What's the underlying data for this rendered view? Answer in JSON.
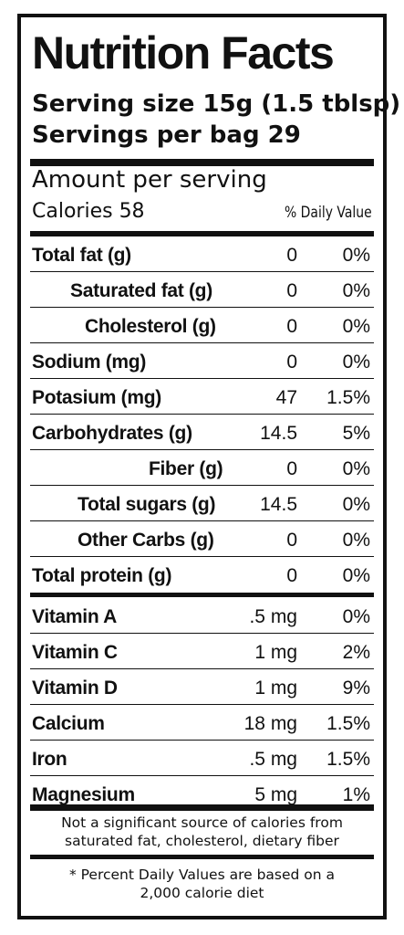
{
  "label": {
    "title": "Nutrition Facts",
    "serving_size": "Serving size 15g (1.5 tblsp)",
    "servings_per_bag": "Servings per bag 29",
    "amount_per_serving": "Amount per serving",
    "calories": "Calories 58",
    "daily_value_header": "% Daily Value",
    "nutrients": [
      {
        "name": "Total fat (g)",
        "amount": "0",
        "dv": "0%"
      },
      {
        "name": "Saturated fat (g)",
        "amount": "0",
        "dv": "0%"
      },
      {
        "name": "Cholesterol (g)",
        "amount": "0",
        "dv": "0%"
      },
      {
        "name": "Sodium (mg)",
        "amount": "0",
        "dv": "0%"
      },
      {
        "name": "Potasium (mg)",
        "amount": "47",
        "dv": "1.5%"
      },
      {
        "name": "Carbohydrates (g)",
        "amount": "14.5",
        "dv": "5%"
      },
      {
        "name": "Fiber (g)",
        "amount": "0",
        "dv": "0%"
      },
      {
        "name": "Total sugars (g)",
        "amount": "14.5",
        "dv": "0%"
      },
      {
        "name": "Other Carbs (g)",
        "amount": "0",
        "dv": "0%"
      },
      {
        "name": "Total protein (g)",
        "amount": "0",
        "dv": "0%"
      }
    ],
    "vitamins": [
      {
        "name": "Vitamin A",
        "amount": ".5 mg",
        "dv": "0%"
      },
      {
        "name": "Vitamin C",
        "amount": "1 mg",
        "dv": "2%"
      },
      {
        "name": "Vitamin D",
        "amount": "1 mg",
        "dv": "9%"
      },
      {
        "name": "Calcium",
        "amount": "18 mg",
        "dv": "1.5%"
      },
      {
        "name": "Iron",
        "amount": ".5 mg",
        "dv": "1.5%"
      },
      {
        "name": "Magnesium",
        "amount": "5 mg",
        "dv": "1%"
      }
    ],
    "footnote_1": "Not a significant source of calories from saturated fat, cholesterol, dietary fiber",
    "footnote_2": "* Percent Daily Values are based on a 2,000 calorie diet"
  }
}
